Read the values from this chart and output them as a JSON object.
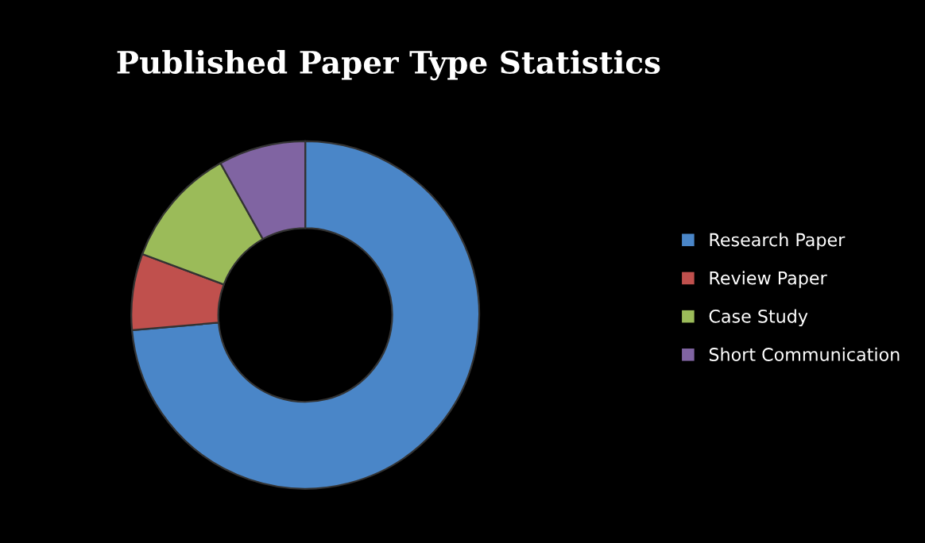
{
  "chart_data": {
    "type": "donut",
    "title": "Published Paper Type Statistics",
    "categories": [
      "Research Paper",
      "Review Paper",
      "Case Study",
      "Short Communication"
    ],
    "values": [
      73.6,
      7.1,
      11.2,
      8.1
    ],
    "colors": [
      "#4a86c8",
      "#c0504d",
      "#9bbb59",
      "#8064a2"
    ],
    "legend": "right"
  }
}
